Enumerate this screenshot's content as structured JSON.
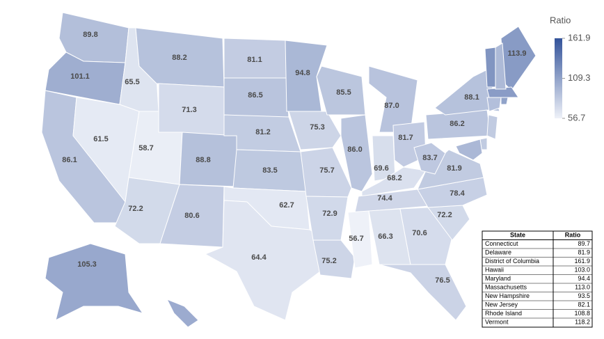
{
  "map": {
    "values": [
      89.8,
      101.1,
      86.1,
      61.5,
      65.5,
      88.2,
      71.3,
      58.7,
      72.2,
      88.8,
      80.6,
      81.1,
      86.5,
      81.2,
      83.5,
      62.7,
      64.4,
      94.8,
      75.3,
      75.7,
      72.9,
      75.2,
      85.5,
      86.0,
      87.0,
      69.6,
      81.7,
      68.2,
      74.4,
      56.7,
      66.3,
      70.6,
      76.5,
      72.2,
      78.4,
      81.9,
      83.7,
      86.2,
      88.1,
      113.9,
      105.3
    ],
    "value_labels": [
      "89.8",
      "101.1",
      "86.1",
      "61.5",
      "65.5",
      "88.2",
      "71.3",
      "58.7",
      "72.2",
      "88.8",
      "80.6",
      "81.1",
      "86.5",
      "81.2",
      "83.5",
      "62.7",
      "64.4",
      "94.8",
      "75.3",
      "75.7",
      "72.9",
      "75.2",
      "85.5",
      "86.0",
      "87.0",
      "69.6",
      "81.7",
      "68.2",
      "74.4",
      "56.7",
      "66.3",
      "70.6",
      "76.5",
      "72.2",
      "78.4",
      "81.9",
      "83.7",
      "86.2",
      "88.1",
      "113.9",
      "105.3"
    ]
  },
  "colorbar": {
    "title": "Ratio",
    "range": [
      56.7,
      161.9
    ],
    "ticks": [
      56.7,
      109.3,
      161.9
    ],
    "colors": [
      "#eef1f8",
      "#33539a"
    ]
  },
  "table": {
    "columns": [
      "State",
      "Ratio"
    ],
    "names": [
      "Connecticut",
      "Delaware",
      "District of Columbia",
      "Hawaii",
      "Maryland",
      "Massachusetts",
      "New Hampshire",
      "New Jersey",
      "Rhode Island",
      "Vermont"
    ],
    "values": [
      89.7,
      81.9,
      161.9,
      103.0,
      94.4,
      113.0,
      93.5,
      82.1,
      108.8,
      118.2
    ],
    "value_labels": [
      "89.7",
      "81.9",
      "161.9",
      "103.0",
      "94.4",
      "113.0",
      "93.5",
      "82.1",
      "108.8",
      "118.2"
    ]
  }
}
